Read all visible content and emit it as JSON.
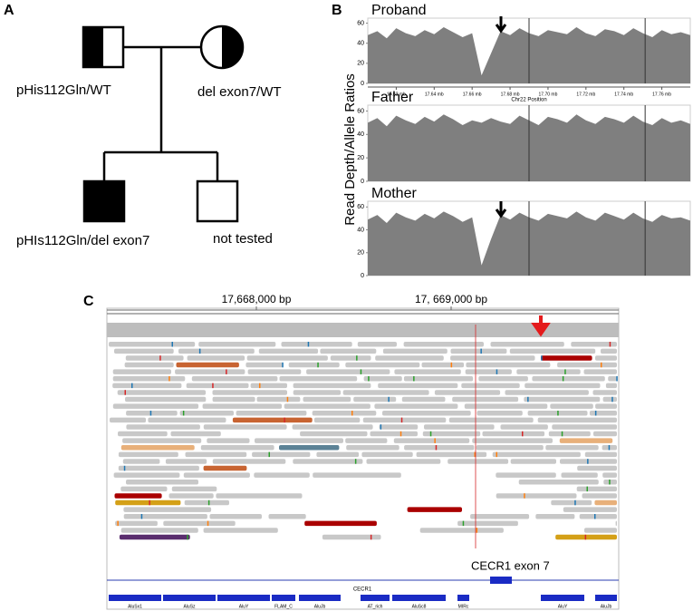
{
  "panel_a": {
    "label": "A",
    "individuals": [
      {
        "label": "pHis112Gln/WT"
      },
      {
        "label": "del exon7/WT"
      },
      {
        "label": "pHIs112Gln/del exon7"
      },
      {
        "label": "not tested"
      }
    ]
  },
  "panel_b": {
    "label": "B",
    "type": "area",
    "y_axis_label": "Read Depth/Allele Ratios",
    "x_axis_label": "Chr22 Position",
    "ylim": [
      0,
      65
    ],
    "yticks": [
      0,
      20,
      40,
      60
    ],
    "xlim": [
      17.605,
      17.775
    ],
    "xticks": [
      {
        "value": 17.62,
        "label": "17.62 mb"
      },
      {
        "value": 17.64,
        "label": "17.64 mb"
      },
      {
        "value": 17.66,
        "label": "17.66 mb"
      },
      {
        "value": 17.68,
        "label": "17.68 mb"
      },
      {
        "value": 17.7,
        "label": "17.70 mb"
      },
      {
        "value": 17.72,
        "label": "17.72 mb"
      },
      {
        "value": 17.74,
        "label": "17.74 mb"
      },
      {
        "value": 17.76,
        "label": "17.76 mb"
      }
    ],
    "x": [
      17.605,
      17.61,
      17.615,
      17.62,
      17.625,
      17.63,
      17.635,
      17.64,
      17.645,
      17.65,
      17.655,
      17.66,
      17.665,
      17.67,
      17.675,
      17.68,
      17.685,
      17.69,
      17.695,
      17.7,
      17.705,
      17.71,
      17.715,
      17.72,
      17.725,
      17.73,
      17.735,
      17.74,
      17.745,
      17.75,
      17.755,
      17.76,
      17.765,
      17.77,
      17.775
    ],
    "tracks": [
      {
        "name": "Proband",
        "coverage": [
          48,
          52,
          45,
          55,
          50,
          47,
          53,
          49,
          56,
          51,
          46,
          50,
          8,
          30,
          52,
          48,
          55,
          50,
          47,
          53,
          51,
          49,
          56,
          50,
          47,
          54,
          52,
          48,
          55,
          50,
          46,
          53,
          49,
          51,
          48
        ]
      },
      {
        "name": "Father",
        "coverage": [
          50,
          54,
          47,
          56,
          52,
          49,
          55,
          51,
          57,
          53,
          48,
          52,
          50,
          54,
          51,
          49,
          56,
          52,
          48,
          55,
          53,
          50,
          57,
          52,
          49,
          55,
          53,
          50,
          56,
          51,
          48,
          54,
          50,
          52,
          49
        ]
      },
      {
        "name": "Mother",
        "coverage": [
          49,
          53,
          46,
          55,
          51,
          48,
          54,
          50,
          56,
          52,
          47,
          51,
          9,
          32,
          53,
          49,
          55,
          51,
          48,
          54,
          52,
          50,
          56,
          51,
          48,
          55,
          52,
          49,
          55,
          50,
          47,
          53,
          50,
          51,
          48
        ]
      }
    ]
  },
  "panel_c": {
    "label": "C",
    "ruler": [
      "17,668,000 bp",
      "17, 669,000 bp"
    ],
    "exon_label": "CECR1 exon 7",
    "gene": "CECR1",
    "repeats": [
      "AluSx1",
      "AluSz",
      "AluY",
      "FLAM_C",
      "AluJb",
      "AT_rich",
      "AluSc8",
      "MIRc",
      "AluY",
      "AluJb"
    ]
  }
}
